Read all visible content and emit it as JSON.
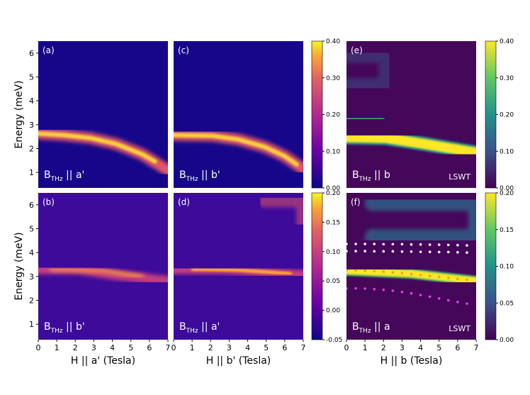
{
  "chart_data": [
    {
      "type": "heatmap",
      "panel": "(a)",
      "annotation": {
        "main": "B",
        "sub": "THz",
        "rest": " || a'"
      },
      "colormap": "plasma",
      "xlim": [
        0,
        7
      ],
      "ylim": [
        0.35,
        6.5
      ],
      "yticks": [
        1,
        2,
        3,
        4,
        5,
        6
      ],
      "ylabel": "Energy (meV)"
    },
    {
      "type": "heatmap",
      "panel": "(c)",
      "annotation": {
        "main": "B",
        "sub": "THz",
        "rest": " || b'"
      },
      "colormap": "plasma",
      "xlim": [
        0,
        7
      ],
      "ylim": [
        0.35,
        6.5
      ]
    },
    {
      "type": "heatmap",
      "panel": "(e)",
      "annotation": {
        "main": "B",
        "sub": "THz",
        "rest": " || b"
      },
      "note": "LSWT",
      "colormap": "viridis",
      "xlim": [
        0,
        7
      ],
      "ylim": [
        0.35,
        6.5
      ]
    },
    {
      "type": "heatmap",
      "panel": "(b)",
      "annotation": {
        "main": "B",
        "sub": "THz",
        "rest": " || b'"
      },
      "colormap": "plasma",
      "xlim": [
        0,
        7
      ],
      "ylim": [
        0.35,
        6.5
      ],
      "yticks": [
        1,
        2,
        3,
        4,
        5,
        6
      ],
      "ylabel": "Energy (meV)",
      "xticks": [
        0,
        1,
        2,
        3,
        4,
        5,
        6,
        7
      ],
      "xlabel": "H || a' (Tesla)"
    },
    {
      "type": "heatmap",
      "panel": "(d)",
      "annotation": {
        "main": "B",
        "sub": "THz",
        "rest": " || a'"
      },
      "colormap": "plasma",
      "xlim": [
        0,
        7
      ],
      "ylim": [
        0.35,
        6.5
      ],
      "xticks": [
        0,
        1,
        2,
        3,
        4,
        5,
        6,
        7
      ],
      "xlabel": "H || b' (Tesla)"
    },
    {
      "type": "heatmap",
      "panel": "(f)",
      "annotation": {
        "main": "B",
        "sub": "THz",
        "rest": " || a"
      },
      "note": "LSWT",
      "colormap": "viridis",
      "xlim": [
        0,
        7
      ],
      "ylim": [
        0.35,
        6.5
      ],
      "xticks": [
        0,
        1,
        2,
        3,
        4,
        5,
        6,
        7
      ],
      "xlabel": "H || b (Tesla)",
      "series": [
        {
          "color": "#ffffff",
          "x": [
            0,
            0.5,
            1,
            1.5,
            2,
            2.5,
            3,
            3.5,
            4,
            4.5,
            5,
            5.5,
            6,
            6.5
          ],
          "values": [
            4.36,
            4.36,
            4.36,
            4.36,
            4.35,
            4.35,
            4.35,
            4.34,
            4.34,
            4.33,
            4.33,
            4.32,
            4.31,
            4.3
          ]
        },
        {
          "color": "#ffffff",
          "x": [
            0,
            0.5,
            1,
            1.5,
            2,
            2.5,
            3,
            3.5,
            4,
            4.5,
            5,
            5.5,
            6,
            6.5
          ],
          "values": [
            4.06,
            4.06,
            4.06,
            4.05,
            4.05,
            4.05,
            4.04,
            4.04,
            4.03,
            4.03,
            4.02,
            4.02,
            4.01,
            4.0
          ]
        },
        {
          "color": "#f0a030",
          "x": [
            0,
            0.5,
            1,
            1.5,
            2,
            2.5,
            3,
            3.5,
            4,
            4.5,
            5,
            5.5,
            6,
            6.5
          ],
          "values": [
            3.25,
            3.25,
            3.24,
            3.22,
            3.2,
            3.17,
            3.14,
            3.1,
            3.06,
            3.02,
            2.98,
            2.94,
            2.9,
            2.86
          ]
        },
        {
          "color": "#e040e0",
          "x": [
            0,
            0.5,
            1,
            1.5,
            2,
            2.5,
            3,
            3.5,
            4,
            4.5,
            5,
            5.5,
            6,
            6.5
          ],
          "values": [
            2.5,
            2.5,
            2.49,
            2.47,
            2.44,
            2.4,
            2.35,
            2.29,
            2.22,
            2.15,
            2.08,
            2.0,
            1.93,
            1.86
          ]
        }
      ]
    }
  ],
  "colorbars": [
    {
      "colormap": "plasma",
      "lim": [
        0,
        0.4
      ],
      "ticks": [
        {
          "value": 0,
          "label": "0.00"
        },
        {
          "value": 0.1,
          "label": "0.10"
        },
        {
          "value": 0.2,
          "label": "0.20"
        },
        {
          "value": 0.3,
          "label": "0.30"
        },
        {
          "value": 0.4,
          "label": "0.40"
        }
      ]
    },
    {
      "colormap": "viridis",
      "lim": [
        0,
        0.4
      ],
      "ticks": [
        {
          "value": 0,
          "label": "0.00"
        },
        {
          "value": 0.1,
          "label": "0.10"
        },
        {
          "value": 0.2,
          "label": "0.20"
        },
        {
          "value": 0.3,
          "label": "0.30"
        },
        {
          "value": 0.4,
          "label": "0.40"
        }
      ]
    },
    {
      "colormap": "plasma",
      "lim": [
        -0.05,
        0.2
      ],
      "ticks": [
        {
          "value": -0.05,
          "label": "-0.05"
        },
        {
          "value": 0,
          "label": "0.00"
        },
        {
          "value": 0.05,
          "label": "0.05"
        },
        {
          "value": 0.1,
          "label": "0.10"
        },
        {
          "value": 0.15,
          "label": "0.15"
        },
        {
          "value": 0.2,
          "label": "0.20"
        }
      ]
    },
    {
      "colormap": "viridis",
      "lim": [
        0,
        0.2
      ],
      "ticks": [
        {
          "value": 0,
          "label": "0.00"
        },
        {
          "value": 0.05,
          "label": "0.05"
        },
        {
          "value": 0.1,
          "label": "0.10"
        },
        {
          "value": 0.15,
          "label": "0.15"
        },
        {
          "value": 0.2,
          "label": "0.20"
        }
      ]
    }
  ]
}
